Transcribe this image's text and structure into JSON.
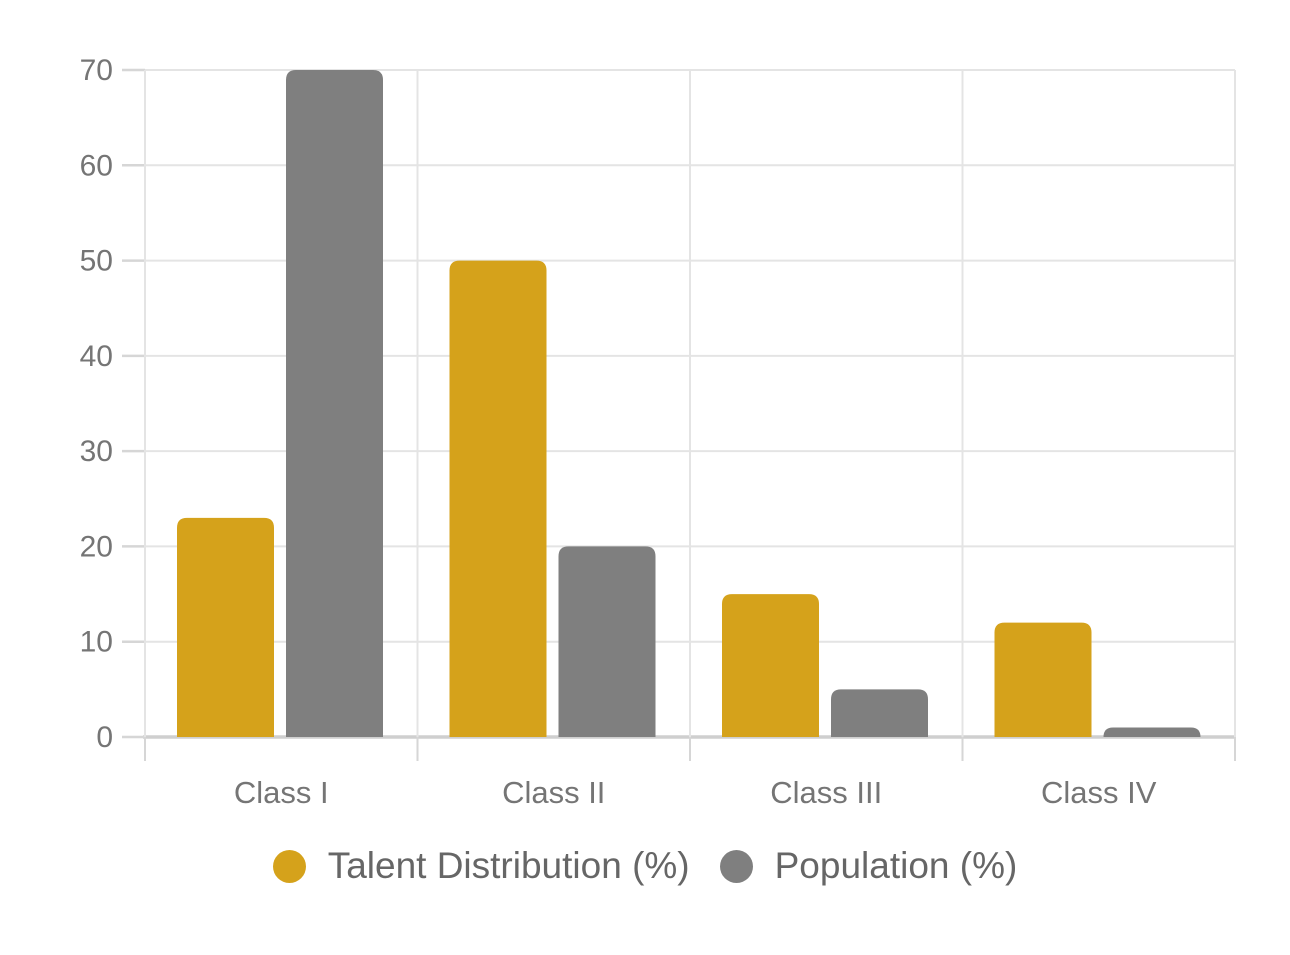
{
  "chart_data": {
    "type": "bar",
    "title": "",
    "xlabel": "",
    "ylabel": "",
    "categories": [
      "Class I",
      "Class II",
      "Class III",
      "Class IV"
    ],
    "series": [
      {
        "name": "Talent Distribution (%)",
        "color": "#D5A21B",
        "values": [
          23,
          50,
          15,
          12
        ]
      },
      {
        "name": "Population (%)",
        "color": "#7F7F7F",
        "values": [
          70,
          20,
          5,
          1
        ]
      }
    ],
    "ylim": [
      0,
      70
    ],
    "yticks": [
      0,
      10,
      20,
      30,
      40,
      50,
      60,
      70
    ],
    "grid": true,
    "legend_position": "bottom"
  },
  "palette": {
    "background": "#FFFFFF",
    "gridline": "#E4E4E4",
    "axis_line": "#CFCFCF",
    "tick": "#D6D6D6",
    "axis_label_text": "#757575",
    "legend_text": "#666666"
  }
}
